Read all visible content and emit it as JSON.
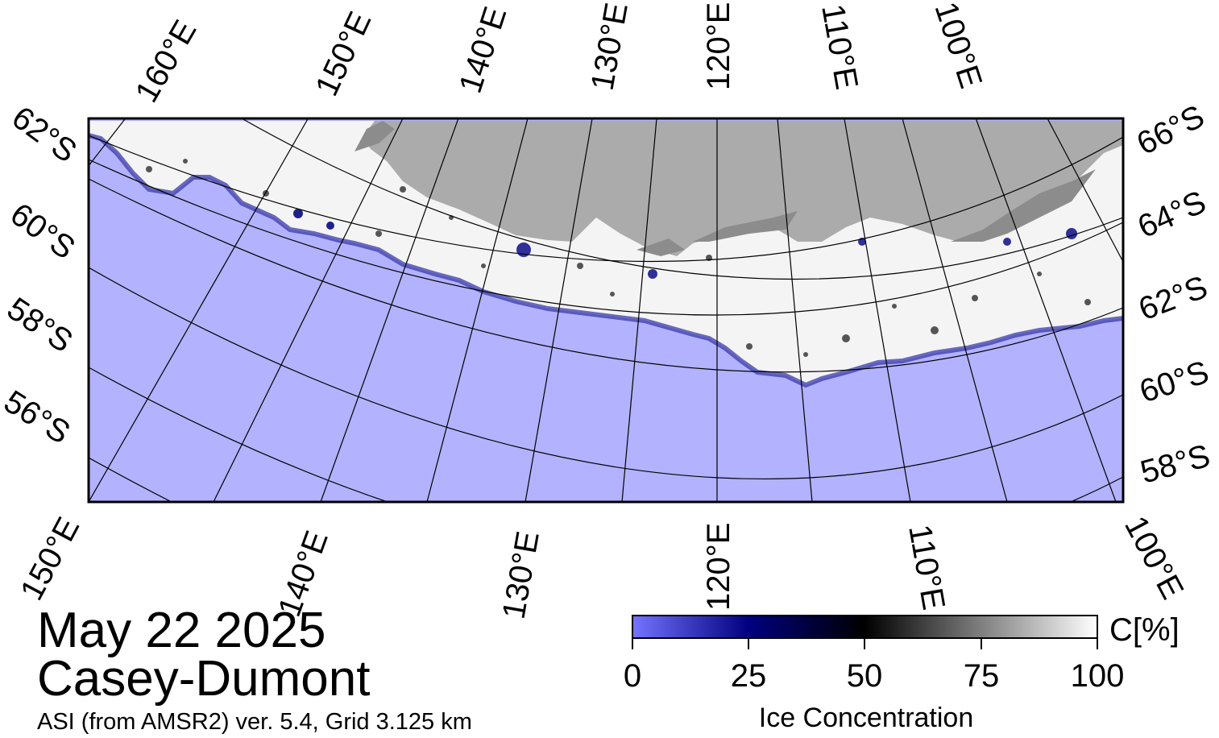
{
  "date": "May 22 2025",
  "region": "Casey-Dumont",
  "source": "ASI (from AMSR2) ver. 5.4,  Grid 3.125 km",
  "colors": {
    "ocean": "#b2b2ff",
    "land": "#ababab",
    "ice_shelf": "#8c8c8c",
    "frame": "#000000"
  },
  "graticule": {
    "top_longitude_labels": [
      "160°E",
      "150°E",
      "140°E",
      "130°E",
      "120°E",
      "110°E",
      "100°E"
    ],
    "bottom_longitude_labels": [
      "150°E",
      "140°E",
      "130°E",
      "120°E",
      "110°E",
      "100°E"
    ],
    "left_latitude_labels": [
      "62°S",
      "60°S",
      "58°S",
      "56°S"
    ],
    "right_latitude_labels": [
      "66°S",
      "64°S",
      "62°S",
      "60°S",
      "58°S"
    ]
  },
  "colorbar": {
    "title": "Ice Concentration",
    "unit": "C[%]",
    "ticks": [
      "0",
      "25",
      "50",
      "75",
      "100"
    ],
    "range": [
      0,
      100
    ],
    "stops": [
      "#7474ff",
      "#00007f",
      "#000000",
      "#7f7f7f",
      "#ffffff"
    ]
  }
}
